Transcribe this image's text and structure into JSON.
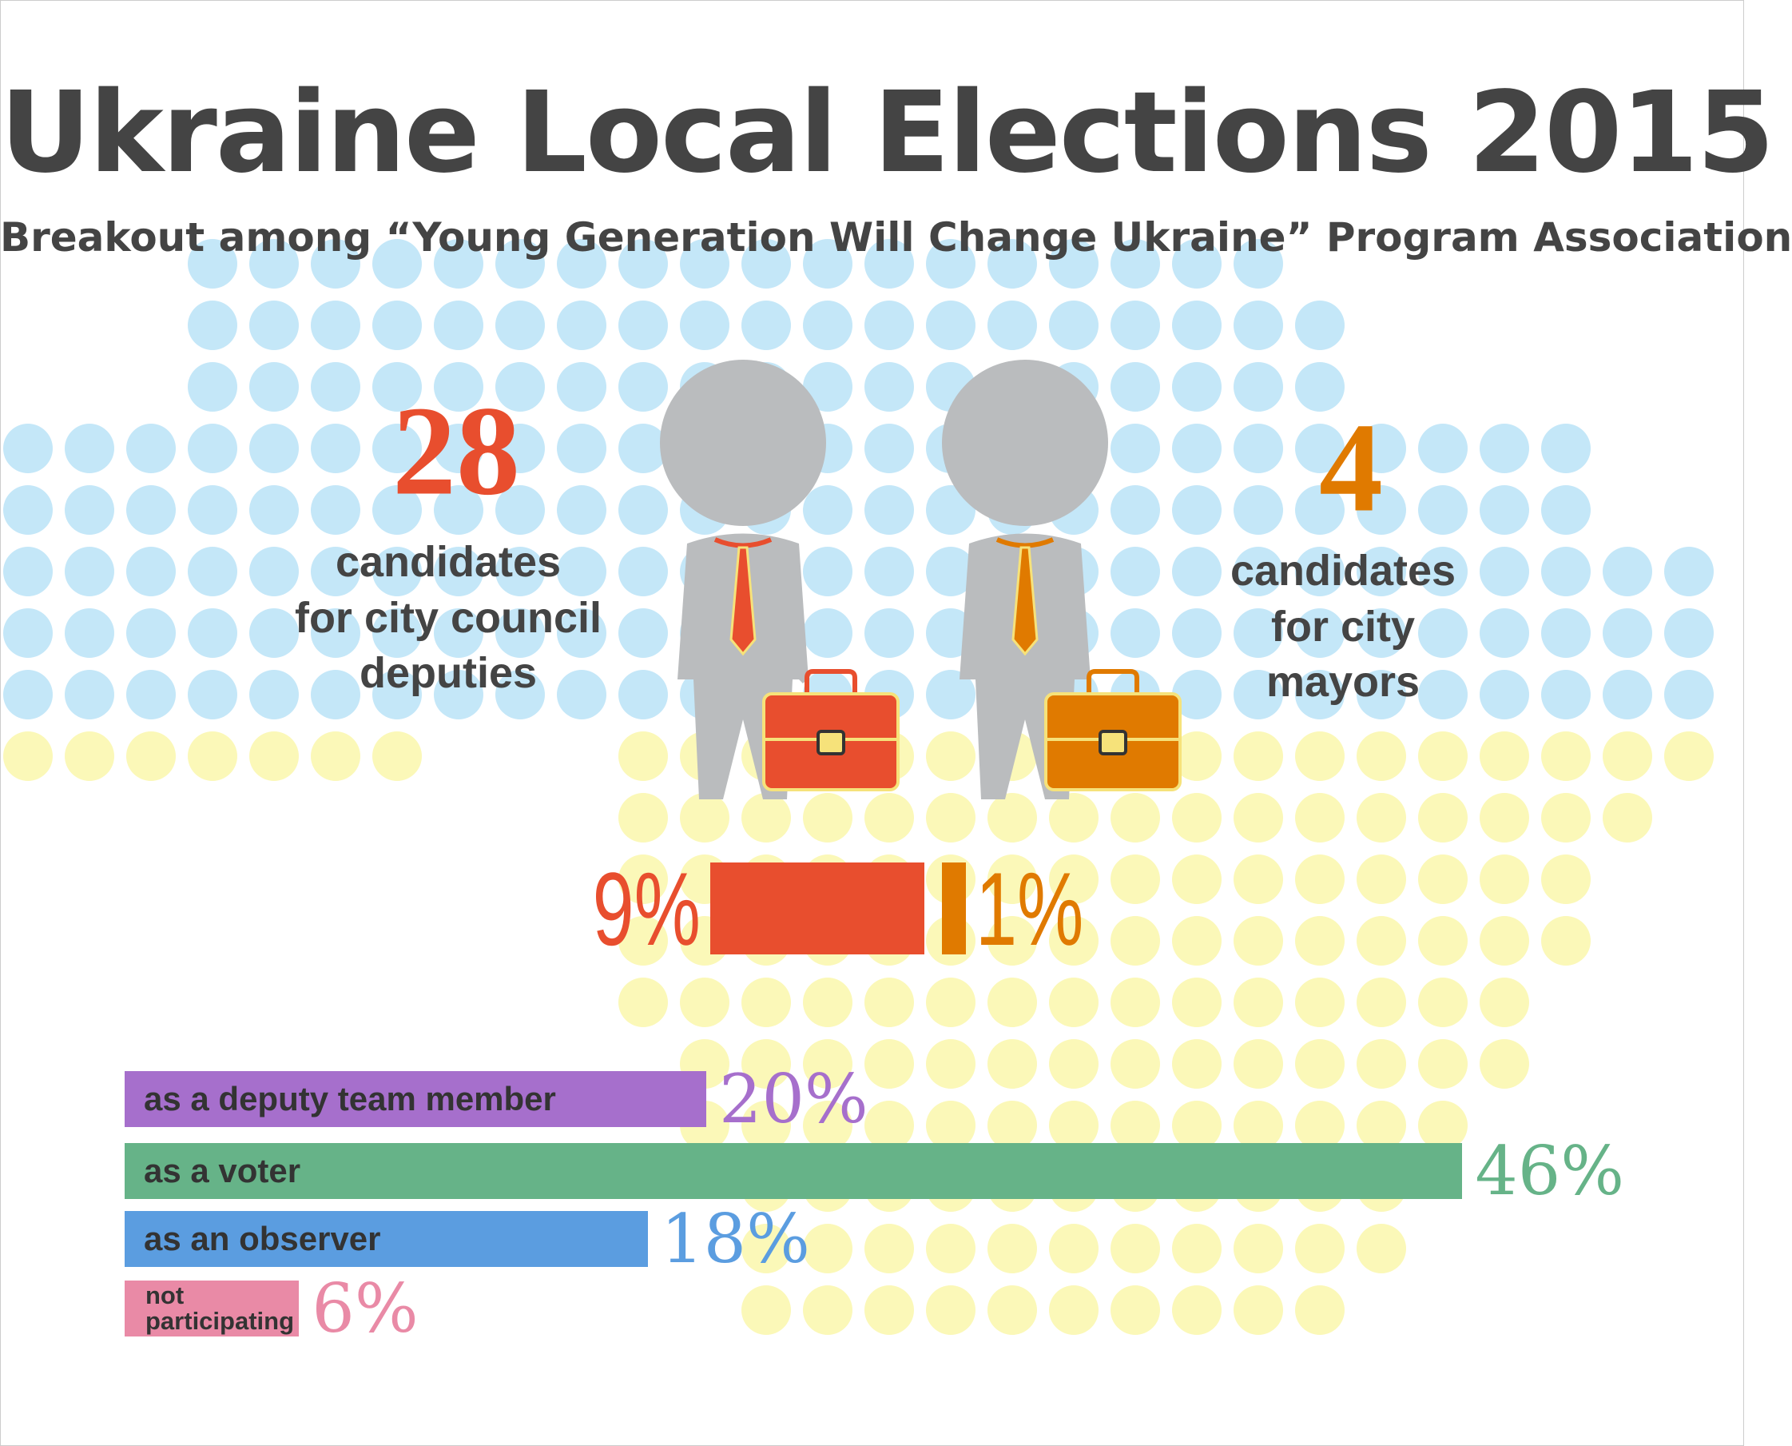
{
  "title": "Ukraine Local Elections 2015",
  "subtitle": "Breakout among “Young Generation Will Change Ukraine” Program Association",
  "candidates": [
    {
      "count": 28,
      "lines": [
        "candidates",
        "for city council",
        "deputies"
      ],
      "share": 9,
      "share_label": "9%",
      "color": "#e84e2e"
    },
    {
      "count": 4,
      "lines": [
        "candidates",
        "for city",
        "mayors"
      ],
      "share": 1,
      "share_label": "1%",
      "color": "#e07a00"
    }
  ],
  "chart_data": {
    "type": "bar",
    "categories": [
      "as a deputy team member",
      "as a voter",
      "as an observer",
      "not participating"
    ],
    "values": [
      20,
      46,
      18,
      6
    ],
    "value_labels": [
      "20%",
      "46%",
      "18%",
      "6%"
    ],
    "colors": [
      "#a66fcc",
      "#66b388",
      "#5b9de0",
      "#e98aa6"
    ]
  }
}
